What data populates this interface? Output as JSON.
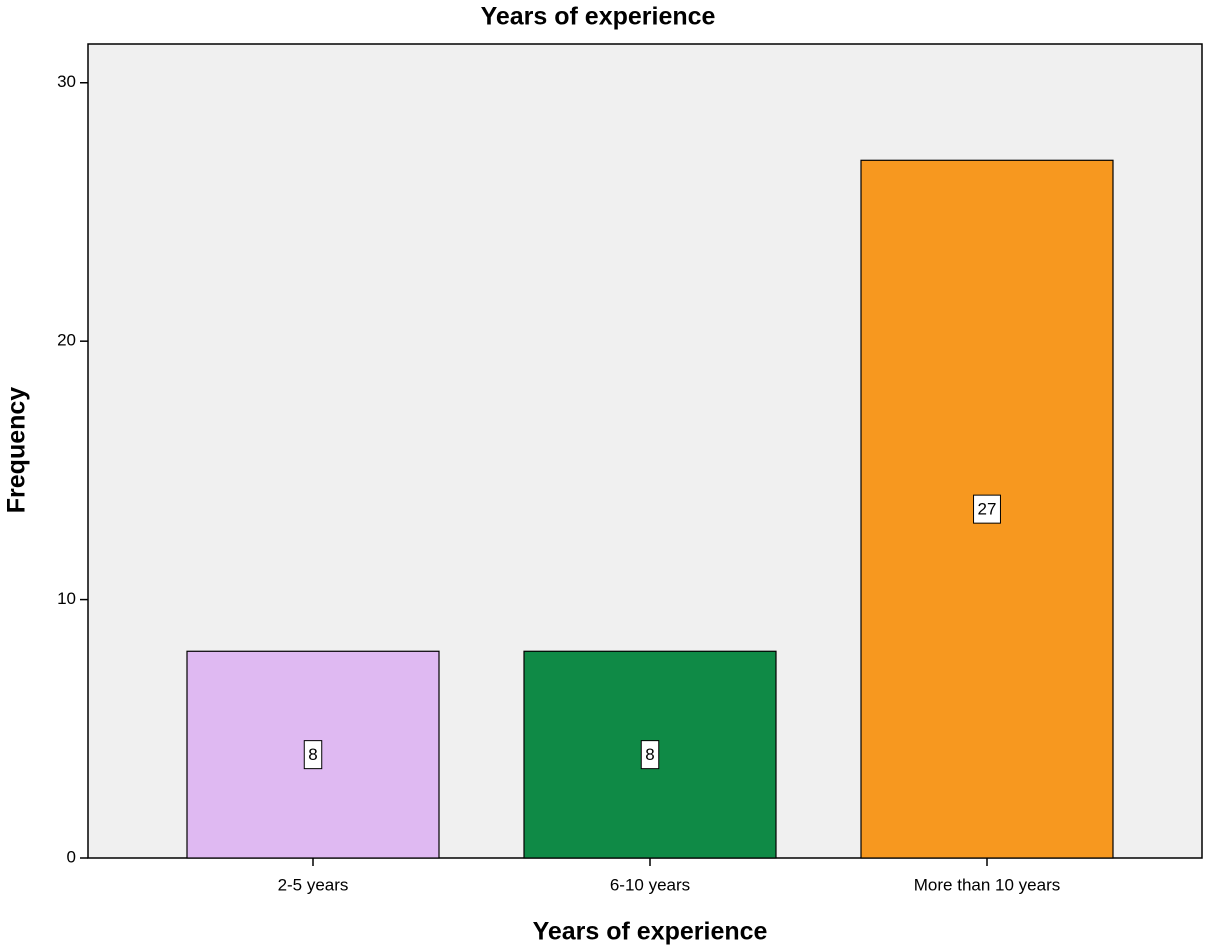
{
  "chart_data": {
    "type": "bar",
    "title": "Years of experience",
    "x_label": "Years of experience",
    "y_label": "Frequency",
    "categories": [
      "2-5 years",
      "6-10 years",
      "More than 10 years"
    ],
    "values": [
      8,
      8,
      27
    ],
    "colors": [
      "#dfb9f2",
      "#0f8a46",
      "#f7981f"
    ],
    "ylim": [
      0,
      31.5
    ],
    "yticks": [
      0,
      10,
      20,
      30
    ]
  }
}
